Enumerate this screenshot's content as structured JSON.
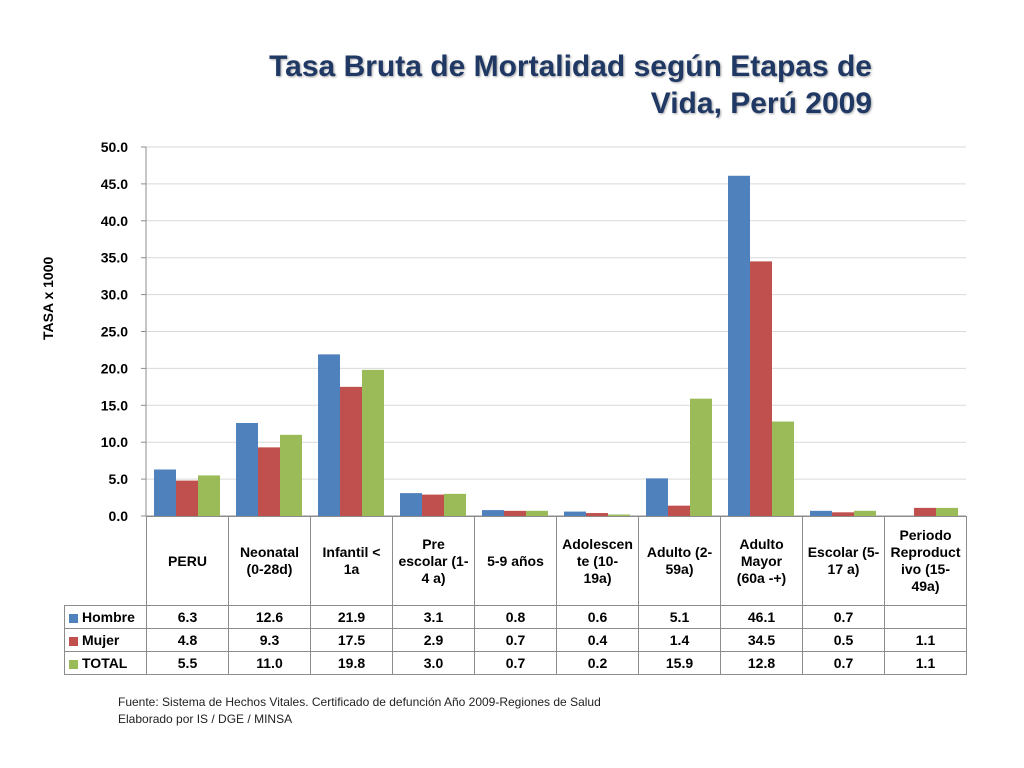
{
  "title_line1": "Tasa Bruta de Mortalidad según Etapas de",
  "title_line2": "Vida, Perú 2009",
  "source_line1": "Fuente: Sistema de Hechos Vitales. Certificado de defunción Año 2009-Regiones de Salud",
  "source_line2": "Elaborado por IS / DGE / MINSA",
  "colors": {
    "title": "#1f3864",
    "grid": "#d9d9d9"
  },
  "chart_data": {
    "type": "bar",
    "ylabel": "TASA x 1000",
    "ylim": [
      0,
      50
    ],
    "yticks": [
      "0.0",
      "5.0",
      "10.0",
      "15.0",
      "20.0",
      "25.0",
      "30.0",
      "35.0",
      "40.0",
      "45.0",
      "50.0"
    ],
    "grid": true,
    "categories": [
      "PERU",
      "Neonatal (0-28d)",
      "Infantil < 1a",
      "Pre escolar (1-4 a)",
      "5-9 años",
      "Adolescente (10-19a)",
      "Adulto (2-59a)",
      "Adulto Mayor (60a -+)",
      "Escolar (5-17 a)",
      "Periodo Reproductivo (15-49a)"
    ],
    "category_lines": [
      [
        "PERU"
      ],
      [
        "Neonatal",
        "(0-28d)"
      ],
      [
        "Infantil <",
        "1a"
      ],
      [
        "Pre",
        "escolar (1-",
        "4 a)"
      ],
      [
        "5-9 años"
      ],
      [
        "Adolescen",
        "te (10-",
        "19a)"
      ],
      [
        "Adulto (2-",
        "59a)"
      ],
      [
        "Adulto",
        "Mayor",
        "(60a -+)"
      ],
      [
        "Escolar (5-",
        "17 a)"
      ],
      [
        "Periodo",
        "Reproduct",
        "ivo (15-",
        "49a)"
      ]
    ],
    "series": [
      {
        "name": "Hombre",
        "color": "#4f81bd",
        "values": [
          6.3,
          12.6,
          21.9,
          3.1,
          0.8,
          0.6,
          5.1,
          46.1,
          0.7,
          null
        ],
        "labels": [
          "6.3",
          "12.6",
          "21.9",
          "3.1",
          "0.8",
          "0.6",
          "5.1",
          "46.1",
          "0.7",
          ""
        ]
      },
      {
        "name": "Mujer",
        "color": "#c0504d",
        "values": [
          4.8,
          9.3,
          17.5,
          2.9,
          0.7,
          0.4,
          1.4,
          34.5,
          0.5,
          1.1
        ],
        "labels": [
          "4.8",
          "9.3",
          "17.5",
          "2.9",
          "0.7",
          "0.4",
          "1.4",
          "34.5",
          "0.5",
          "1.1"
        ]
      },
      {
        "name": "TOTAL",
        "color": "#9bbb59",
        "values": [
          5.5,
          11.0,
          19.8,
          3.0,
          0.7,
          0.2,
          15.9,
          12.8,
          0.7,
          1.1
        ],
        "labels": [
          "5.5",
          "11.0",
          "19.8",
          "3.0",
          "0.7",
          "0.2",
          "15.9",
          "12.8",
          "0.7",
          "1.1"
        ]
      }
    ]
  }
}
